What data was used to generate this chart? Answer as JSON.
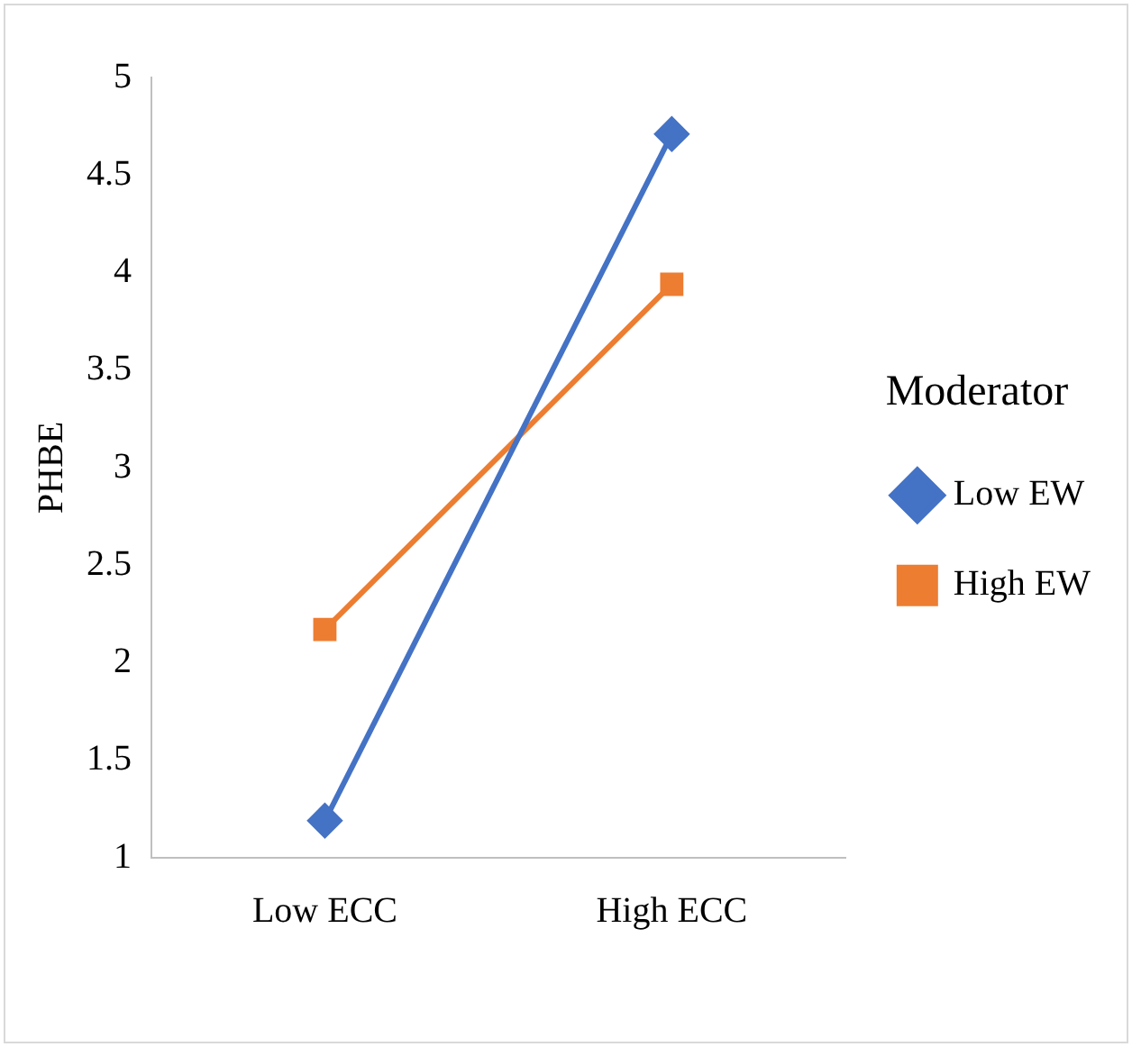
{
  "chart_data": {
    "type": "line",
    "ylabel": "PHBE",
    "legend_title": "Moderator",
    "legend": "right",
    "grid": false,
    "categories": [
      "Low ECC",
      "High ECC"
    ],
    "ylim": [
      1,
      5
    ],
    "yticks": [
      1,
      1.5,
      2,
      2.5,
      3,
      3.5,
      4,
      4.5,
      5
    ],
    "series": [
      {
        "name": "Low EW",
        "color": "#4472c4",
        "marker": "diamond",
        "values": [
          1.19,
          4.71
        ]
      },
      {
        "name": "High EW",
        "color": "#ed7d31",
        "marker": "square",
        "values": [
          2.17,
          3.94
        ]
      }
    ]
  }
}
